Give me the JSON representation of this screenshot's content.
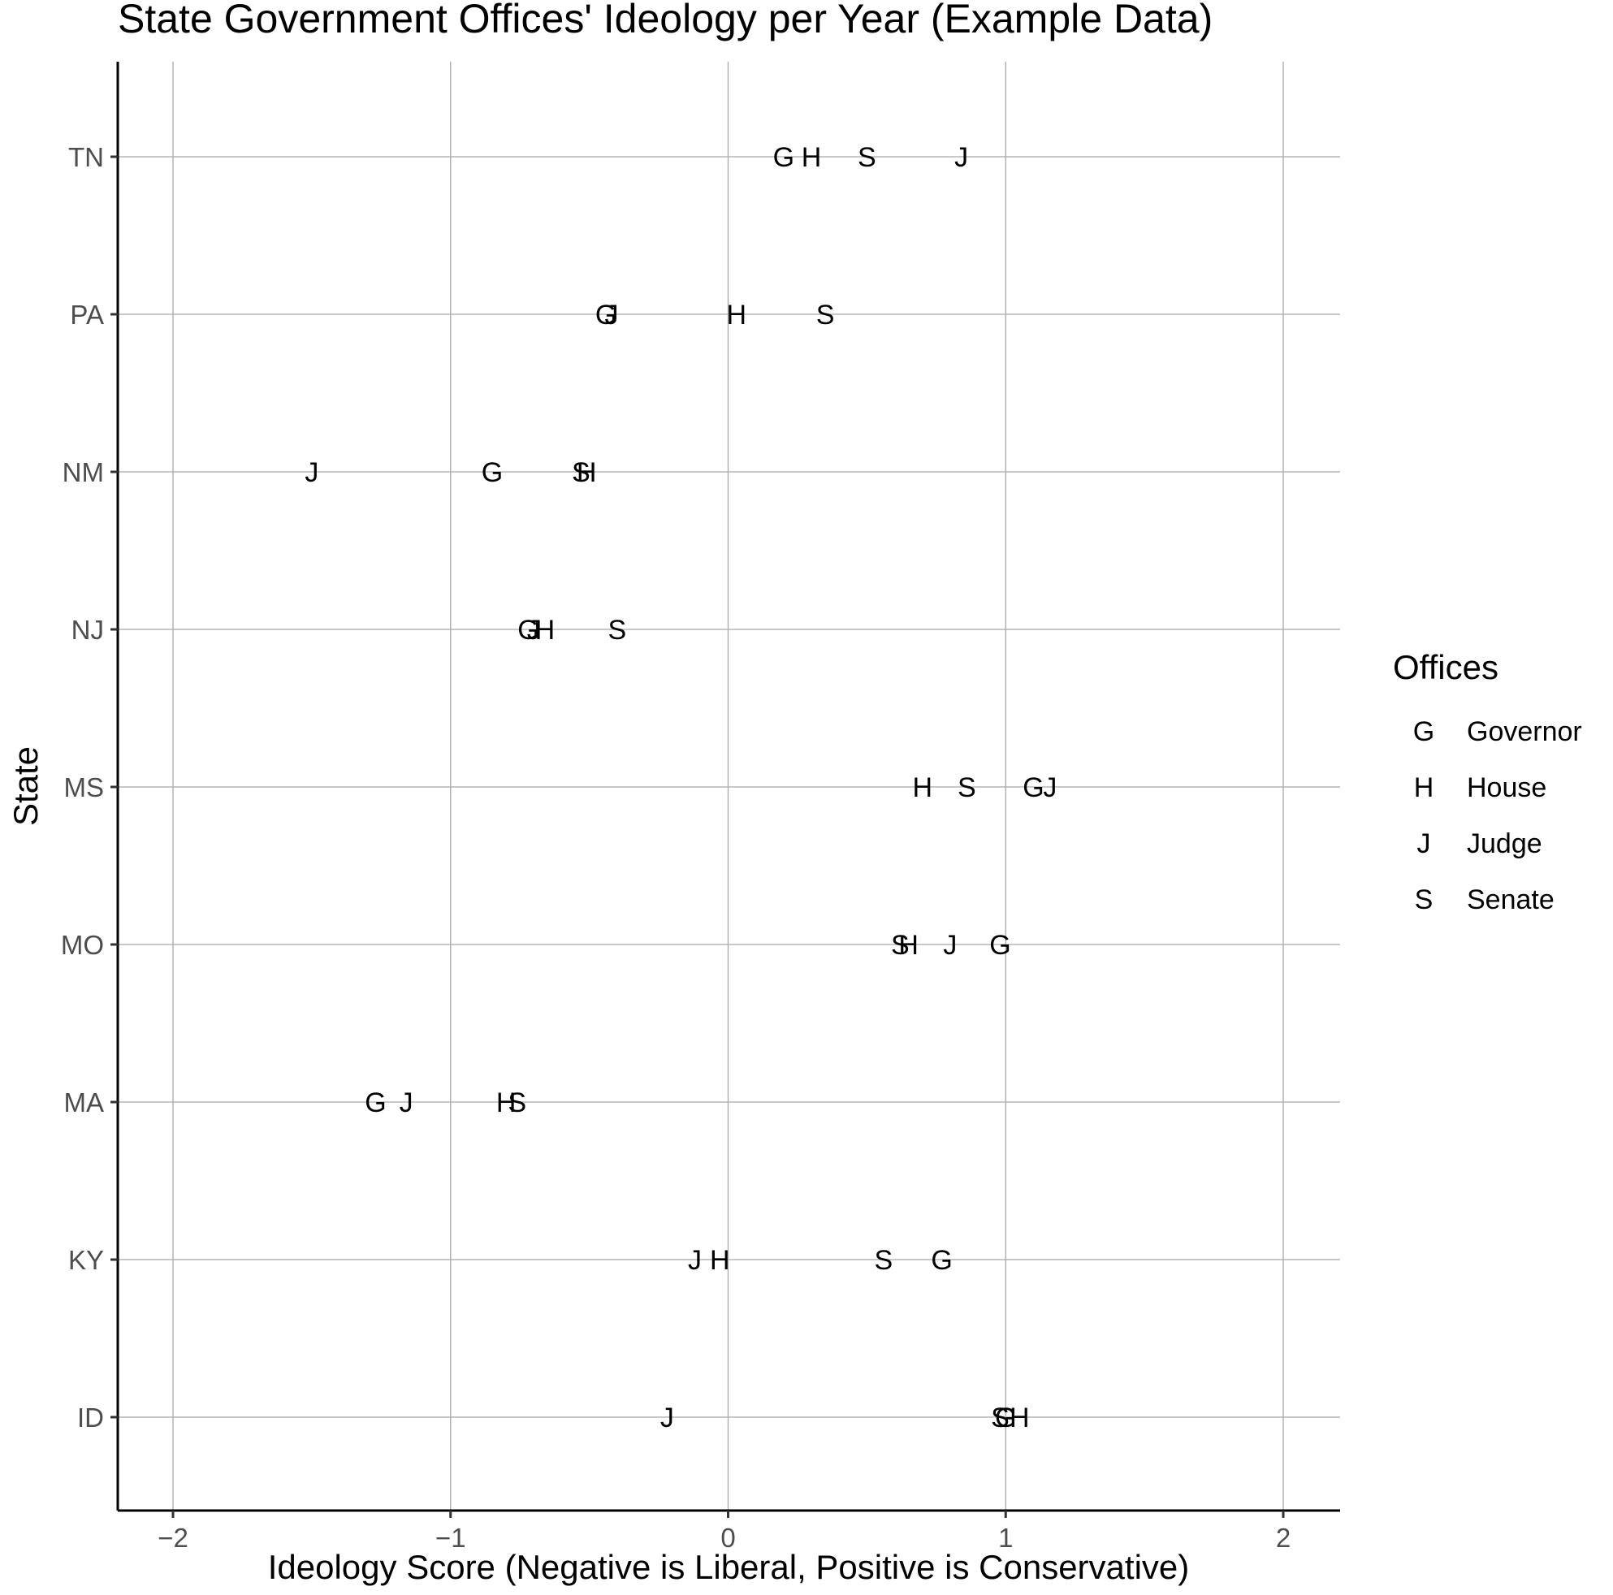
{
  "chart_data": {
    "type": "scatter",
    "title": "State Government Offices' Ideology per Year (Example Data)",
    "xlabel": "Ideology Score (Negative is Liberal, Positive is Conservative)",
    "ylabel": "State",
    "xlim": [
      -2.2,
      2.2
    ],
    "x_ticks": [
      -2,
      -1,
      0,
      1,
      2
    ],
    "x_tick_labels": [
      "−2",
      "−1",
      "0",
      "1",
      "2"
    ],
    "categories": [
      "ID",
      "KY",
      "MA",
      "MO",
      "MS",
      "NJ",
      "NM",
      "PA",
      "TN"
    ],
    "grid": true,
    "legend": {
      "title": "Offices",
      "position": "right",
      "entries": [
        {
          "key": "G",
          "label": "Governor"
        },
        {
          "key": "H",
          "label": "House"
        },
        {
          "key": "J",
          "label": "Judge"
        },
        {
          "key": "S",
          "label": "Senate"
        }
      ]
    },
    "series": [
      {
        "name": "Governor",
        "key": "G",
        "points": [
          {
            "state": "TN",
            "x": 0.2
          },
          {
            "state": "PA",
            "x": -0.44
          },
          {
            "state": "NM",
            "x": -0.85
          },
          {
            "state": "NJ",
            "x": -0.72
          },
          {
            "state": "MS",
            "x": 1.1
          },
          {
            "state": "MO",
            "x": 0.98
          },
          {
            "state": "MA",
            "x": -1.27
          },
          {
            "state": "KY",
            "x": 0.77
          },
          {
            "state": "ID",
            "x": 1.0
          }
        ]
      },
      {
        "name": "House",
        "key": "H",
        "points": [
          {
            "state": "TN",
            "x": 0.3
          },
          {
            "state": "PA",
            "x": 0.03
          },
          {
            "state": "NM",
            "x": -0.51
          },
          {
            "state": "NJ",
            "x": -0.66
          },
          {
            "state": "MS",
            "x": 0.7
          },
          {
            "state": "MO",
            "x": 0.65
          },
          {
            "state": "MA",
            "x": -0.8
          },
          {
            "state": "KY",
            "x": -0.03
          },
          {
            "state": "ID",
            "x": 1.05
          }
        ]
      },
      {
        "name": "Judge",
        "key": "J",
        "points": [
          {
            "state": "TN",
            "x": 0.84
          },
          {
            "state": "PA",
            "x": -0.42
          },
          {
            "state": "NM",
            "x": -1.5
          },
          {
            "state": "NJ",
            "x": -0.7
          },
          {
            "state": "MS",
            "x": 1.16
          },
          {
            "state": "MO",
            "x": 0.8
          },
          {
            "state": "MA",
            "x": -1.16
          },
          {
            "state": "KY",
            "x": -0.12
          },
          {
            "state": "ID",
            "x": -0.22
          }
        ]
      },
      {
        "name": "Senate",
        "key": "S",
        "points": [
          {
            "state": "TN",
            "x": 0.5
          },
          {
            "state": "PA",
            "x": 0.35
          },
          {
            "state": "NM",
            "x": -0.53
          },
          {
            "state": "NJ",
            "x": -0.4
          },
          {
            "state": "MS",
            "x": 0.86
          },
          {
            "state": "MO",
            "x": 0.62
          },
          {
            "state": "MA",
            "x": -0.76
          },
          {
            "state": "KY",
            "x": 0.56
          },
          {
            "state": "ID",
            "x": 0.98
          }
        ]
      }
    ]
  }
}
